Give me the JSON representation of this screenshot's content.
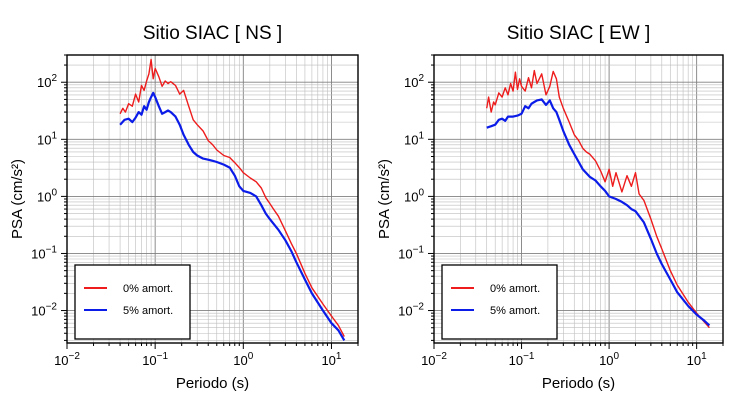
{
  "chart_data": [
    {
      "type": "line",
      "title": "Sitio SIAC [ NS ]",
      "xlabel": "Periodo (s)",
      "ylabel": "PSA (cm/s²)",
      "xscale": "log",
      "yscale": "log",
      "xlim": [
        0.01,
        20
      ],
      "ylim": [
        0.0027,
        300
      ],
      "grid": true,
      "legend_position": "bottom-left",
      "x_ticks": [
        {
          "base": "10",
          "exp": "−2"
        },
        {
          "base": "10",
          "exp": "−1"
        },
        {
          "base": "10",
          "exp": "0"
        },
        {
          "base": "10",
          "exp": "1"
        }
      ],
      "y_ticks": [
        {
          "base": "10",
          "exp": "2"
        },
        {
          "base": "10",
          "exp": "1"
        },
        {
          "base": "10",
          "exp": "0"
        },
        {
          "base": "10",
          "exp": "−1"
        },
        {
          "base": "10",
          "exp": "−2"
        }
      ],
      "series": [
        {
          "name": "0% amort.",
          "color": "#ee1c1c",
          "x": [
            0.04,
            0.043,
            0.046,
            0.05,
            0.055,
            0.06,
            0.065,
            0.07,
            0.075,
            0.08,
            0.085,
            0.09,
            0.095,
            0.1,
            0.11,
            0.12,
            0.13,
            0.14,
            0.15,
            0.17,
            0.19,
            0.21,
            0.24,
            0.27,
            0.3,
            0.35,
            0.4,
            0.45,
            0.5,
            0.6,
            0.7,
            0.8,
            0.9,
            1.0,
            1.2,
            1.4,
            1.6,
            1.8,
            2.0,
            2.2,
            2.5,
            3.0,
            3.5,
            4.0,
            5.0,
            6.0,
            8.0,
            10.0,
            12.0,
            14.0
          ],
          "y": [
            28,
            35,
            30,
            42,
            38,
            62,
            45,
            88,
            72,
            105,
            140,
            250,
            115,
            175,
            125,
            85,
            105,
            95,
            102,
            88,
            62,
            72,
            38,
            22,
            18,
            14,
            9.5,
            8.0,
            6.5,
            5.2,
            4.8,
            3.9,
            3.2,
            2.6,
            2.1,
            1.8,
            1.4,
            0.95,
            0.75,
            0.6,
            0.45,
            0.25,
            0.15,
            0.1,
            0.045,
            0.025,
            0.013,
            0.008,
            0.0055,
            0.0035
          ]
        },
        {
          "name": "5% amort.",
          "color": "#0b1ce8",
          "x": [
            0.04,
            0.045,
            0.05,
            0.055,
            0.06,
            0.065,
            0.07,
            0.075,
            0.08,
            0.085,
            0.09,
            0.095,
            0.1,
            0.11,
            0.12,
            0.13,
            0.14,
            0.15,
            0.17,
            0.19,
            0.21,
            0.24,
            0.27,
            0.3,
            0.35,
            0.4,
            0.45,
            0.5,
            0.6,
            0.7,
            0.8,
            0.9,
            1.0,
            1.2,
            1.4,
            1.6,
            1.8,
            2.0,
            2.5,
            3.0,
            3.5,
            4.0,
            5.0,
            6.0,
            8.0,
            10.0,
            12.0,
            14.0
          ],
          "y": [
            18,
            22,
            23,
            20,
            24,
            30,
            27,
            38,
            33,
            45,
            55,
            65,
            55,
            38,
            28,
            30,
            32,
            30,
            25,
            18,
            12,
            8.0,
            6.0,
            5.2,
            4.6,
            4.4,
            4.2,
            4.0,
            3.6,
            3.2,
            2.3,
            1.5,
            1.25,
            1.15,
            1.0,
            0.7,
            0.5,
            0.4,
            0.26,
            0.17,
            0.11,
            0.07,
            0.035,
            0.02,
            0.01,
            0.006,
            0.0045,
            0.003
          ]
        }
      ]
    },
    {
      "type": "line",
      "title": "Sitio SIAC [ EW ]",
      "xlabel": "Periodo (s)",
      "ylabel": "PSA (cm/s²)",
      "xscale": "log",
      "yscale": "log",
      "xlim": [
        0.01,
        20
      ],
      "ylim": [
        0.0027,
        300
      ],
      "grid": true,
      "legend_position": "bottom-left",
      "x_ticks": [
        {
          "base": "10",
          "exp": "−2"
        },
        {
          "base": "10",
          "exp": "−1"
        },
        {
          "base": "10",
          "exp": "0"
        },
        {
          "base": "10",
          "exp": "1"
        }
      ],
      "y_ticks": [
        {
          "base": "10",
          "exp": "2"
        },
        {
          "base": "10",
          "exp": "1"
        },
        {
          "base": "10",
          "exp": "0"
        },
        {
          "base": "10",
          "exp": "−1"
        },
        {
          "base": "10",
          "exp": "−2"
        }
      ],
      "series": [
        {
          "name": "0% amort.",
          "color": "#ee1c1c",
          "x": [
            0.04,
            0.042,
            0.045,
            0.048,
            0.05,
            0.055,
            0.06,
            0.065,
            0.07,
            0.075,
            0.08,
            0.085,
            0.09,
            0.095,
            0.1,
            0.11,
            0.12,
            0.13,
            0.14,
            0.15,
            0.17,
            0.19,
            0.21,
            0.23,
            0.25,
            0.27,
            0.3,
            0.35,
            0.4,
            0.45,
            0.5,
            0.55,
            0.6,
            0.7,
            0.8,
            0.9,
            1.0,
            1.1,
            1.2,
            1.4,
            1.6,
            1.8,
            2.0,
            2.2,
            2.5,
            3.0,
            3.5,
            4.0,
            5.0,
            6.0,
            8.0,
            10.0,
            12.0,
            14.0
          ],
          "y": [
            35,
            55,
            30,
            45,
            40,
            65,
            55,
            80,
            60,
            95,
            70,
            150,
            75,
            115,
            85,
            70,
            120,
            80,
            160,
            95,
            140,
            60,
            85,
            155,
            115,
            55,
            35,
            20,
            12,
            9.5,
            7.0,
            6.0,
            5.5,
            4.2,
            2.8,
            1.8,
            3.0,
            1.5,
            2.6,
            1.2,
            2.3,
            1.5,
            2.6,
            1.1,
            0.85,
            0.4,
            0.2,
            0.12,
            0.05,
            0.028,
            0.014,
            0.009,
            0.0065,
            0.005
          ]
        },
        {
          "name": "5% amort.",
          "color": "#0b1ce8",
          "x": [
            0.04,
            0.045,
            0.05,
            0.055,
            0.06,
            0.065,
            0.07,
            0.08,
            0.09,
            0.1,
            0.11,
            0.12,
            0.13,
            0.14,
            0.15,
            0.17,
            0.19,
            0.21,
            0.23,
            0.25,
            0.27,
            0.3,
            0.35,
            0.4,
            0.45,
            0.5,
            0.6,
            0.7,
            0.8,
            0.9,
            1.0,
            1.2,
            1.4,
            1.6,
            1.8,
            2.0,
            2.5,
            3.0,
            3.5,
            4.0,
            5.0,
            6.0,
            8.0,
            10.0,
            12.0,
            14.0
          ],
          "y": [
            16,
            17,
            18,
            22,
            23,
            21,
            25,
            25,
            26,
            28,
            38,
            35,
            42,
            45,
            48,
            50,
            40,
            48,
            35,
            30,
            22,
            14,
            8.0,
            5.5,
            4.0,
            3.0,
            2.2,
            1.9,
            1.5,
            1.25,
            1.0,
            0.9,
            0.8,
            0.7,
            0.6,
            0.55,
            0.35,
            0.18,
            0.1,
            0.065,
            0.035,
            0.021,
            0.012,
            0.0085,
            0.0068,
            0.0055
          ]
        }
      ]
    }
  ]
}
